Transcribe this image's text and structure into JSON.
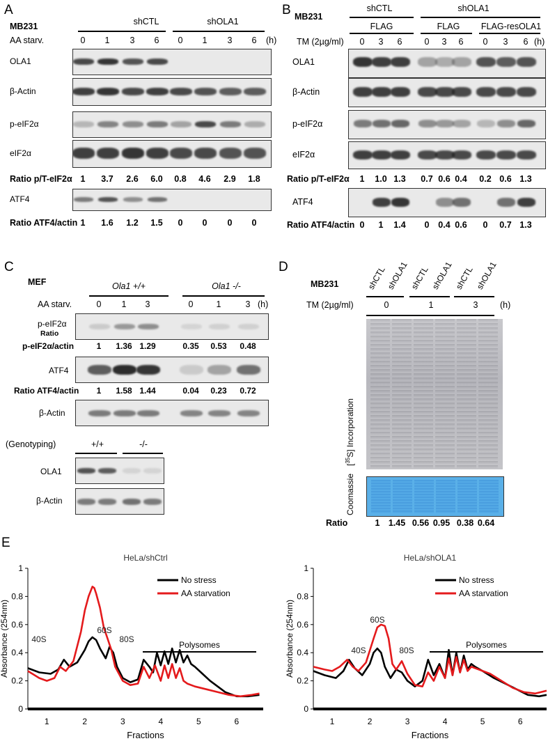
{
  "A": {
    "panel": "A",
    "cell": "MB231",
    "groups": [
      "shCTL",
      "shOLA1"
    ],
    "row_label": "AA starv.",
    "times": [
      "0",
      "1",
      "3",
      "6",
      "0",
      "1",
      "3",
      "6"
    ],
    "unit": "(h)",
    "blots": [
      "OLA1",
      "β-Actin",
      "p-eIF2α",
      "eIF2α",
      "ATF4"
    ],
    "ratio1_label": "Ratio p/T-eIF2α",
    "ratio1": [
      "1",
      "3.7",
      "2.6",
      "6.0",
      "0.8",
      "4.6",
      "2.9",
      "1.8"
    ],
    "ratio2_label": "Ratio ATF4/actin",
    "ratio2": [
      "1",
      "1.6",
      "1.2",
      "1.5",
      "0",
      "0",
      "0",
      "0"
    ]
  },
  "B": {
    "panel": "B",
    "cell": "MB231",
    "groups": [
      "shCTL",
      "shOLA1"
    ],
    "subgroups": [
      "FLAG",
      "FLAG",
      "FLAG-resOLA1"
    ],
    "row_label": "TM (2µg/ml)",
    "times": [
      "0",
      "3",
      "6",
      "0",
      "3",
      "6",
      "0",
      "3",
      "6"
    ],
    "unit": "(h)",
    "blots": [
      "OLA1",
      "β-Actin",
      "p-eIF2α",
      "eIF2α",
      "ATF4"
    ],
    "ratio1_label": "Ratio p/T-eIF2α",
    "ratio1": [
      "1",
      "1.0",
      "1.3",
      "0.7",
      "0.6",
      "0.4",
      "0.2",
      "0.6",
      "1.3"
    ],
    "ratio2_label": "Ratio ATF4/actin",
    "ratio2": [
      "0",
      "1",
      "1.4",
      "0",
      "0.4",
      "0.6",
      "0",
      "0.7",
      "1.3"
    ]
  },
  "C": {
    "panel": "C",
    "cell": "MEF",
    "groups": [
      "Ola1 +/+",
      "Ola1 -/-"
    ],
    "row_label": "AA starv.",
    "times": [
      "0",
      "1",
      "3",
      "0",
      "1",
      "3"
    ],
    "unit": "(h)",
    "blot_peif": "p-eIF2α",
    "ratio_word": "Ratio",
    "ratio1_label": "p-eIF2α/actin",
    "ratio1": [
      "1",
      "1.36",
      "1.29",
      "0.35",
      "0.53",
      "0.48"
    ],
    "blot_atf4": "ATF4",
    "ratio2_label": "Ratio ATF4/actin",
    "ratio2": [
      "1",
      "1.58",
      "1.44",
      "0.04",
      "0.23",
      "0.72"
    ],
    "blot_actin": "β-Actin",
    "genotyping_label": "(Genotyping)",
    "genotypes": [
      "+/+",
      "-/-"
    ],
    "geno_blots": [
      "OLA1",
      "β-Actin"
    ]
  },
  "D": {
    "panel": "D",
    "cell": "MB231",
    "lanes": [
      "shCTL",
      "shOLA1",
      "shCTL",
      "shOLA1",
      "shCTL",
      "shOLA1"
    ],
    "row_label": "TM (2µg/ml)",
    "times": [
      "0",
      "1",
      "3"
    ],
    "unit": "(h)",
    "autorad_label": "[35S] Incorporation",
    "coomassie_label": "Coomassie",
    "ratio_label": "Ratio",
    "ratio": [
      "1",
      "1.45",
      "0.56",
      "0.95",
      "0.38",
      "0.64"
    ]
  },
  "E": {
    "panel": "E",
    "chart_data": [
      {
        "type": "line",
        "title": "HeLa/shCtrl",
        "xlabel": "Fractions",
        "ylabel": "Absorbance (254nm)",
        "ylim": [
          0,
          1
        ],
        "yticks": [
          "0",
          "0.2",
          "0.4",
          "0.6",
          "0.8",
          "1"
        ],
        "xticks": [
          "1",
          "2",
          "3",
          "4",
          "5",
          "6"
        ],
        "xlim": [
          0.5,
          6.7
        ],
        "peaks": [
          "40S",
          "60S",
          "80S"
        ],
        "region_label": "Polysomes",
        "series": [
          {
            "name": "No stress",
            "color": "#000000",
            "x": [
              0.5,
              0.8,
              1.1,
              1.3,
              1.45,
              1.6,
              1.8,
              2.0,
              2.1,
              2.2,
              2.3,
              2.4,
              2.55,
              2.65,
              2.75,
              2.85,
              3.0,
              3.2,
              3.4,
              3.55,
              3.7,
              3.8,
              3.9,
              4.0,
              4.1,
              4.2,
              4.3,
              4.4,
              4.5,
              4.6,
              4.7,
              4.8,
              4.9,
              5.1,
              5.3,
              5.5,
              5.7,
              6.0,
              6.3,
              6.6
            ],
            "y": [
              0.29,
              0.26,
              0.25,
              0.28,
              0.35,
              0.3,
              0.33,
              0.42,
              0.48,
              0.51,
              0.49,
              0.43,
              0.36,
              0.44,
              0.4,
              0.3,
              0.22,
              0.19,
              0.21,
              0.35,
              0.3,
              0.26,
              0.4,
              0.31,
              0.41,
              0.32,
              0.43,
              0.33,
              0.42,
              0.33,
              0.38,
              0.32,
              0.3,
              0.25,
              0.2,
              0.16,
              0.12,
              0.09,
              0.09,
              0.1
            ]
          },
          {
            "name": "AA starvation",
            "color": "#e41a1c",
            "x": [
              0.5,
              0.8,
              1.0,
              1.2,
              1.35,
              1.5,
              1.7,
              1.9,
              2.0,
              2.1,
              2.2,
              2.25,
              2.3,
              2.4,
              2.5,
              2.6,
              2.7,
              2.8,
              3.0,
              3.2,
              3.4,
              3.55,
              3.7,
              3.85,
              4.0,
              4.1,
              4.2,
              4.3,
              4.4,
              4.5,
              4.6,
              4.7,
              4.9,
              5.2,
              5.5,
              5.8,
              6.1,
              6.4,
              6.6
            ],
            "y": [
              0.27,
              0.22,
              0.2,
              0.22,
              0.3,
              0.27,
              0.34,
              0.55,
              0.7,
              0.8,
              0.87,
              0.86,
              0.82,
              0.72,
              0.58,
              0.5,
              0.42,
              0.3,
              0.2,
              0.17,
              0.18,
              0.3,
              0.22,
              0.31,
              0.2,
              0.31,
              0.22,
              0.32,
              0.22,
              0.29,
              0.2,
              0.18,
              0.16,
              0.14,
              0.12,
              0.1,
              0.09,
              0.1,
              0.11
            ]
          }
        ]
      },
      {
        "type": "line",
        "title": "HeLa/shOLA1",
        "xlabel": "Fractions",
        "ylabel": "Absorbance (254nm)",
        "ylim": [
          0,
          1
        ],
        "yticks": [
          "0",
          "0.2",
          "0.4",
          "0.6",
          "0.8",
          "1"
        ],
        "xticks": [
          "1",
          "2",
          "3",
          "4",
          "5",
          "6"
        ],
        "xlim": [
          0.5,
          6.7
        ],
        "peaks": [
          "40S",
          "60S",
          "80S"
        ],
        "region_label": "Polysomes",
        "series": [
          {
            "name": "No stress",
            "color": "#000000",
            "x": [
              0.5,
              0.8,
              1.1,
              1.3,
              1.45,
              1.6,
              1.8,
              2.0,
              2.1,
              2.2,
              2.3,
              2.4,
              2.55,
              2.7,
              2.85,
              3.0,
              3.2,
              3.4,
              3.55,
              3.7,
              3.85,
              4.0,
              4.1,
              4.2,
              4.3,
              4.4,
              4.5,
              4.6,
              4.7,
              4.8,
              5.0,
              5.3,
              5.6,
              5.9,
              6.2,
              6.5,
              6.7
            ],
            "y": [
              0.27,
              0.24,
              0.22,
              0.27,
              0.35,
              0.29,
              0.24,
              0.32,
              0.4,
              0.43,
              0.4,
              0.3,
              0.22,
              0.28,
              0.26,
              0.2,
              0.16,
              0.2,
              0.35,
              0.24,
              0.32,
              0.22,
              0.42,
              0.24,
              0.4,
              0.26,
              0.38,
              0.28,
              0.32,
              0.3,
              0.27,
              0.22,
              0.18,
              0.14,
              0.1,
              0.09,
              0.1
            ]
          },
          {
            "name": "AA starvation",
            "color": "#e41a1c",
            "x": [
              0.5,
              0.8,
              1.0,
              1.2,
              1.4,
              1.55,
              1.7,
              1.9,
              2.1,
              2.2,
              2.3,
              2.4,
              2.5,
              2.6,
              2.7,
              2.85,
              3.0,
              3.2,
              3.4,
              3.55,
              3.7,
              3.85,
              4.0,
              4.1,
              4.2,
              4.3,
              4.4,
              4.5,
              4.6,
              4.7,
              4.9,
              5.2,
              5.5,
              5.8,
              6.1,
              6.4,
              6.7
            ],
            "y": [
              0.3,
              0.28,
              0.27,
              0.3,
              0.35,
              0.3,
              0.27,
              0.33,
              0.5,
              0.58,
              0.6,
              0.59,
              0.5,
              0.32,
              0.28,
              0.34,
              0.25,
              0.17,
              0.16,
              0.26,
              0.2,
              0.3,
              0.22,
              0.36,
              0.24,
              0.37,
              0.26,
              0.35,
              0.27,
              0.3,
              0.28,
              0.25,
              0.2,
              0.15,
              0.12,
              0.11,
              0.13
            ]
          }
        ]
      }
    ]
  }
}
